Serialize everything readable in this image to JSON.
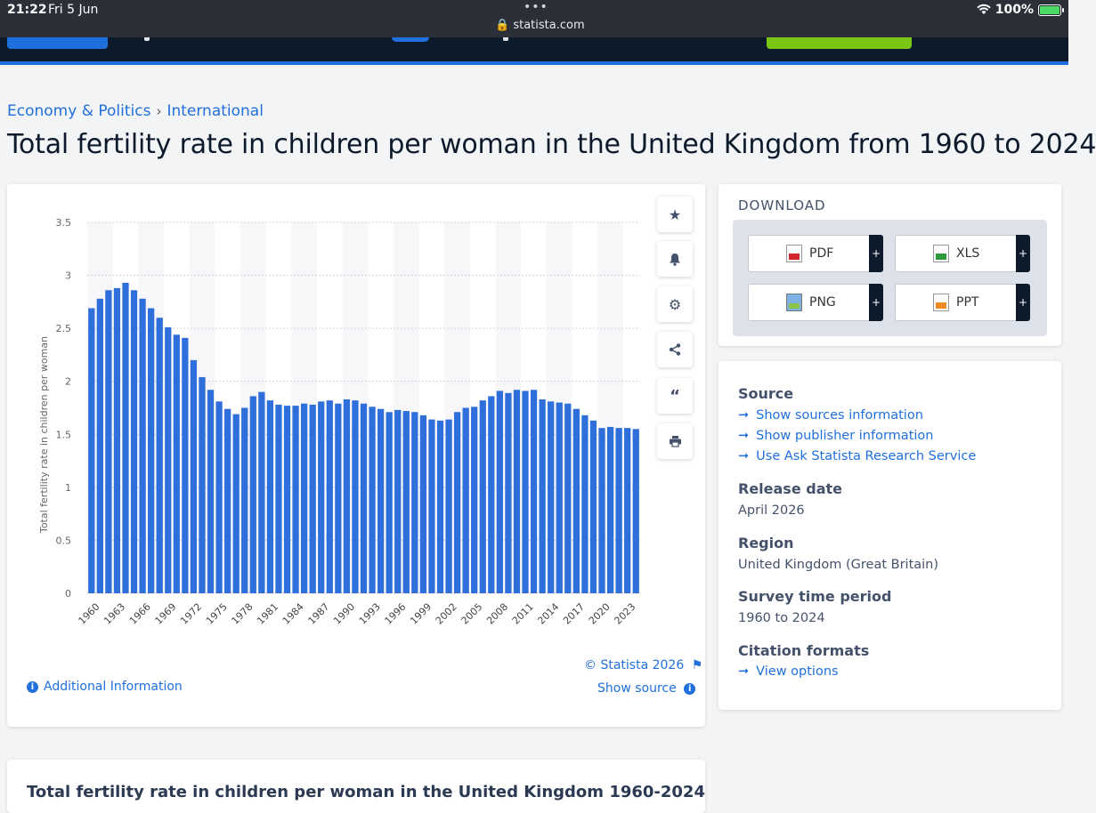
{
  "status_bar": {
    "time": "21:22",
    "date": "Fri 5 Jun",
    "url": "statista.com",
    "battery": "100%"
  },
  "breadcrumb": [
    "Economy & Politics",
    "International"
  ],
  "page_title": "Total fertility rate in children per woman in the United Kingdom from 1960 to 2024",
  "toolbar": [
    "star-icon",
    "bell-icon",
    "gear-icon",
    "share-icon",
    "quote-icon",
    "print-icon"
  ],
  "chart_footer": {
    "copyright": "© Statista 2026",
    "show_source": "Show source",
    "additional_info": "Additional Information"
  },
  "download": {
    "title": "DOWNLOAD",
    "buttons": [
      {
        "label": "PDF",
        "icon": "pdf-icon"
      },
      {
        "label": "XLS",
        "icon": "xls-icon"
      },
      {
        "label": "PNG",
        "icon": "png-icon"
      },
      {
        "label": "PPT",
        "icon": "ppt-icon"
      }
    ],
    "plus": "+"
  },
  "info": {
    "source_heading": "Source",
    "source_links": [
      "Show sources information",
      "Show publisher information",
      "Use Ask Statista Research Service"
    ],
    "release_heading": "Release date",
    "release_value": "April 2026",
    "region_heading": "Region",
    "region_value": "United Kingdom (Great Britain)",
    "survey_heading": "Survey time period",
    "survey_value": "1960 to 2024",
    "citation_heading": "Citation formats",
    "citation_link": "View options"
  },
  "bottom_section_title": "Total fertility rate in children per woman in the United Kingdom 1960-2024",
  "colors": {
    "accent": "#1f6fdc",
    "bar": "#2e6fdc",
    "header": "#0c1a2c",
    "green": "#7bc614"
  },
  "chart_data": {
    "type": "bar",
    "ylabel": "Total fertility rate in children per woman",
    "ylim": [
      0,
      3.5
    ],
    "yticks": [
      0,
      0.5,
      1,
      1.5,
      2,
      2.5,
      3,
      3.5
    ],
    "ytick_labels": [
      "0",
      "0.5",
      "1",
      "1.5",
      "2",
      "2.5",
      "3",
      "3.5"
    ],
    "grid": true,
    "x": [
      1960,
      1961,
      1962,
      1963,
      1964,
      1965,
      1966,
      1967,
      1968,
      1969,
      1970,
      1971,
      1972,
      1973,
      1974,
      1975,
      1976,
      1977,
      1978,
      1979,
      1980,
      1981,
      1982,
      1983,
      1984,
      1985,
      1986,
      1987,
      1988,
      1989,
      1990,
      1991,
      1992,
      1993,
      1994,
      1995,
      1996,
      1997,
      1998,
      1999,
      2000,
      2001,
      2002,
      2003,
      2004,
      2005,
      2006,
      2007,
      2008,
      2009,
      2010,
      2011,
      2012,
      2013,
      2014,
      2015,
      2016,
      2017,
      2018,
      2019,
      2020,
      2021,
      2022,
      2023,
      2024
    ],
    "xtick_labels": [
      "1960",
      "1963",
      "1966",
      "1969",
      "1972",
      "1975",
      "1978",
      "1981",
      "1984",
      "1987",
      "1990",
      "1993",
      "1996",
      "1999",
      "2002",
      "2005",
      "2008",
      "2011",
      "2014",
      "2017",
      "2020",
      "2023"
    ],
    "values": [
      2.69,
      2.78,
      2.86,
      2.88,
      2.93,
      2.86,
      2.78,
      2.69,
      2.6,
      2.51,
      2.44,
      2.41,
      2.2,
      2.04,
      1.92,
      1.81,
      1.74,
      1.69,
      1.75,
      1.86,
      1.9,
      1.82,
      1.78,
      1.77,
      1.77,
      1.79,
      1.78,
      1.81,
      1.82,
      1.79,
      1.83,
      1.82,
      1.79,
      1.76,
      1.74,
      1.71,
      1.73,
      1.72,
      1.71,
      1.68,
      1.64,
      1.63,
      1.64,
      1.71,
      1.75,
      1.76,
      1.82,
      1.86,
      1.91,
      1.89,
      1.92,
      1.91,
      1.92,
      1.83,
      1.81,
      1.8,
      1.79,
      1.74,
      1.68,
      1.63,
      1.56,
      1.57,
      1.56,
      1.56,
      1.55
    ]
  }
}
